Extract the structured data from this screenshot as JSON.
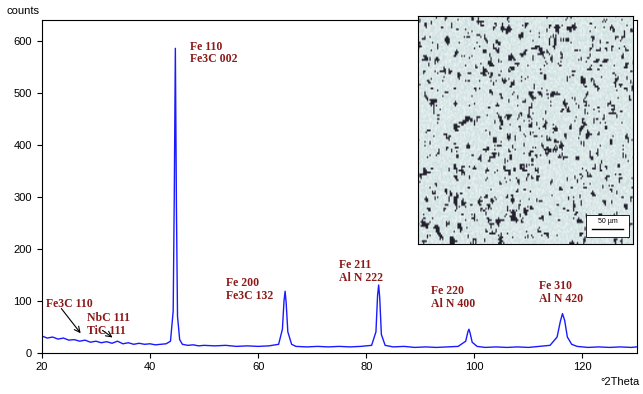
{
  "chart_data": {
    "type": "line",
    "y_label": "counts",
    "x_label": "°2Theta",
    "color": "#1a1aff",
    "grid": false,
    "x": [
      20,
      21,
      22,
      23,
      24,
      25,
      26,
      27,
      28,
      29,
      30,
      31,
      32,
      33,
      34,
      35,
      36,
      37,
      38,
      39,
      40,
      41,
      42,
      43,
      43.8,
      44.3,
      44.5,
      44.7,
      44.9,
      45.1,
      45.5,
      46,
      47,
      48,
      49,
      50,
      52,
      54,
      56,
      58,
      60,
      62,
      63.8,
      64.5,
      64.8,
      65.0,
      65.2,
      65.5,
      66.2,
      67,
      69,
      71,
      73,
      75,
      77,
      79,
      81,
      81.8,
      82.1,
      82.3,
      82.5,
      82.8,
      83.5,
      85,
      87,
      89,
      91,
      93,
      95,
      97,
      98.4,
      98.8,
      99.0,
      99.2,
      99.6,
      100.5,
      102,
      104,
      106,
      108,
      110,
      112,
      114,
      115.3,
      115.9,
      116.3,
      116.7,
      117.2,
      118,
      119,
      121,
      123,
      125,
      127,
      129,
      130
    ],
    "values": [
      32,
      28,
      30,
      26,
      28,
      24,
      25,
      22,
      24,
      20,
      22,
      19,
      21,
      18,
      22,
      17,
      19,
      16,
      18,
      16,
      17,
      15,
      16,
      17,
      22,
      80,
      300,
      585,
      280,
      70,
      25,
      16,
      14,
      15,
      13,
      14,
      13,
      14,
      12,
      13,
      12,
      13,
      16,
      45,
      100,
      118,
      95,
      40,
      16,
      12,
      11,
      12,
      11,
      12,
      11,
      12,
      14,
      40,
      110,
      130,
      105,
      35,
      14,
      11,
      12,
      10,
      11,
      10,
      11,
      12,
      22,
      40,
      45,
      38,
      20,
      12,
      10,
      11,
      10,
      11,
      10,
      12,
      14,
      30,
      60,
      75,
      62,
      30,
      16,
      12,
      10,
      11,
      10,
      11,
      10,
      11
    ],
    "xlim": [
      20,
      130
    ],
    "ylim": [
      0,
      640
    ],
    "xticks": [
      20,
      40,
      60,
      80,
      100,
      120
    ],
    "yticks": [
      0,
      100,
      200,
      300,
      400,
      500,
      600
    ],
    "annotations": [
      {
        "lines": [
          "Fe 110",
          "Fe3C 002"
        ]
      },
      {
        "lines": [
          "Fe 200",
          "Fe3C 132"
        ]
      },
      {
        "lines": [
          "Fe 211",
          "Al N 222"
        ]
      },
      {
        "lines": [
          "Fe 220",
          "Al N 400"
        ]
      },
      {
        "lines": [
          "Fe 310",
          "Al N 420"
        ]
      },
      {
        "lines": [
          "Fe3C 110"
        ]
      },
      {
        "lines": [
          "NbC 111",
          "TiC 111"
        ]
      }
    ],
    "inset": {
      "scale_bar": "50 µm"
    }
  }
}
